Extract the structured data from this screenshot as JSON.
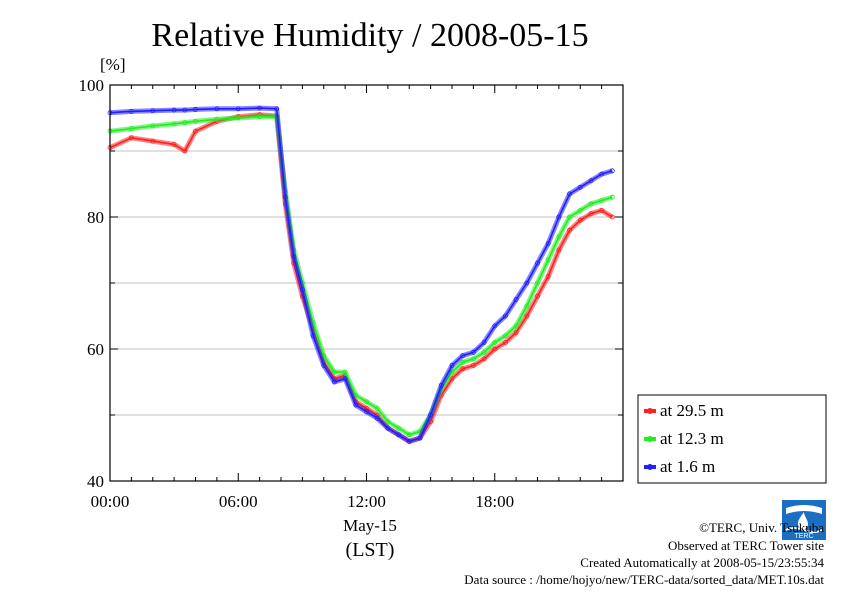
{
  "chart_data": {
    "type": "line",
    "title": "Relative Humidity / 2008-05-15",
    "ylabel": "[%]",
    "xlabel": "May-15",
    "xlabel2": "(LST)",
    "ylim": [
      40,
      100
    ],
    "xlim": [
      0,
      24
    ],
    "yticks": [
      "40",
      "60",
      "80",
      "100"
    ],
    "xticks": [
      "00:00",
      "06:00",
      "12:00",
      "18:00"
    ],
    "grid": true,
    "legend_position": "right",
    "x": [
      0,
      1,
      2,
      3,
      3.5,
      4,
      5,
      6,
      7,
      7.8,
      8.2,
      8.6,
      9,
      9.5,
      10,
      10.5,
      11,
      11.5,
      12,
      12.5,
      13,
      13.5,
      14,
      14.5,
      15,
      15.5,
      16,
      16.5,
      17,
      17.5,
      18,
      18.5,
      19,
      19.5,
      20,
      20.5,
      21,
      21.5,
      22,
      22.5,
      23,
      23.5
    ],
    "series": [
      {
        "name": "at 29.5 m",
        "color": "#ff2020",
        "values": [
          90.5,
          92,
          91.5,
          91,
          90,
          93,
          94.5,
          95.2,
          95.5,
          95.3,
          82,
          73,
          68,
          63,
          58,
          55.5,
          56,
          52,
          51,
          50,
          48,
          47,
          46,
          46.5,
          49,
          53,
          55.5,
          57,
          57.5,
          58.5,
          60,
          61,
          62.5,
          65,
          68,
          71,
          75,
          78,
          79.5,
          80.5,
          81,
          80
        ]
      },
      {
        "name": "at 12.3 m",
        "color": "#20ee20",
        "values": [
          93,
          93.4,
          93.8,
          94.1,
          94.3,
          94.5,
          94.8,
          95,
          95.2,
          95.2,
          84,
          75,
          70,
          64,
          59,
          56.5,
          56.5,
          53,
          52,
          51,
          49,
          48,
          47,
          47.5,
          50,
          54,
          56.5,
          58,
          58.5,
          59.5,
          61,
          62,
          63.5,
          66.5,
          70,
          73.5,
          77,
          80,
          81,
          82,
          82.5,
          83
        ]
      },
      {
        "name": "at 1.6 m",
        "color": "#2020ff",
        "values": [
          95.8,
          96,
          96.1,
          96.2,
          96.2,
          96.3,
          96.4,
          96.4,
          96.5,
          96.4,
          83,
          74,
          69,
          62,
          57.5,
          55,
          55.5,
          51.5,
          50.5,
          49.5,
          48,
          47,
          46,
          46.5,
          50,
          54.5,
          57.5,
          59,
          59.5,
          61,
          63.5,
          65,
          67.5,
          70,
          73,
          76,
          80,
          83.5,
          84.5,
          85.5,
          86.5,
          87
        ]
      }
    ]
  },
  "credits": {
    "copyright": "©TERC, Univ. Tsukuba",
    "observed": "Observed at TERC Tower site",
    "created": "Created Automatically at 2008-05-15/23:55:34",
    "source": "Data source : /home/hojyo/new/TERC-data/sorted_data/MET.10s.dat"
  },
  "logo_text": "TERC"
}
